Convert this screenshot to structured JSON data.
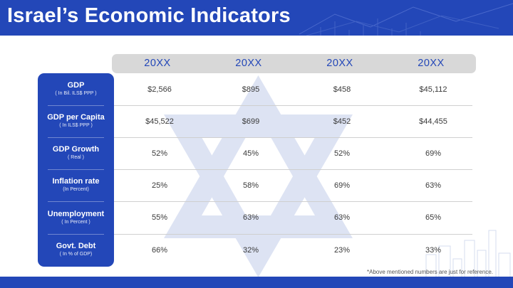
{
  "title": "Israel’s Economic Indicators",
  "years": [
    "20XX",
    "20XX",
    "20XX",
    "20XX"
  ],
  "indicators": [
    {
      "label": "GDP",
      "sub": "( In Bil. ILS$ PPP )",
      "values": [
        "$2,566",
        "$895",
        "$458",
        "$45,112"
      ]
    },
    {
      "label": "GDP per Capita",
      "sub": "( In ILS$ PPP )",
      "values": [
        "$45,522",
        "$699",
        "$452",
        "$44,455"
      ]
    },
    {
      "label": "GDP Growth",
      "sub": "( Real )",
      "values": [
        "52%",
        "45%",
        "52%",
        "69%"
      ]
    },
    {
      "label": "Inflation rate",
      "sub": "(In Percent)",
      "values": [
        "25%",
        "58%",
        "69%",
        "63%"
      ]
    },
    {
      "label": "Unemployment",
      "sub": "( In Percent )",
      "values": [
        "55%",
        "63%",
        "63%",
        "65%"
      ]
    },
    {
      "label": "Govt. Debt",
      "sub": "( In % of GDP)",
      "values": [
        "66%",
        "32%",
        "23%",
        "33%"
      ]
    }
  ],
  "footnote": "*Above mentioned numbers are just for reference.",
  "colors": {
    "brand_blue": "#2347b8",
    "year_bar": "#d8d8d8",
    "star_watermark": "#dde3f3"
  }
}
